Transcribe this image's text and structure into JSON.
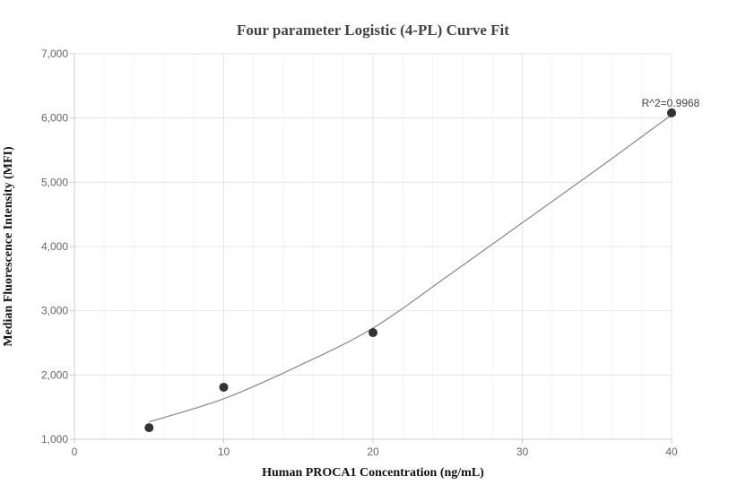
{
  "chart_data": {
    "type": "scatter",
    "title": "Four parameter Logistic (4-PL) Curve Fit",
    "xlabel": "Human PROCA1 Concentration (ng/mL)",
    "ylabel": "Median Fluorescence Intensity (MFI)",
    "xlim": [
      0,
      40
    ],
    "ylim": [
      1000,
      7000
    ],
    "x_ticks": [
      0,
      10,
      20,
      30,
      40
    ],
    "y_ticks": [
      1000,
      2000,
      3000,
      4000,
      5000,
      6000,
      7000
    ],
    "x_tick_labels": [
      "0",
      "10",
      "20",
      "30",
      "40"
    ],
    "y_tick_labels": [
      "1,000",
      "2,000",
      "3,000",
      "4,000",
      "5,000",
      "6,000",
      "7,000"
    ],
    "grid": true,
    "points": {
      "x": [
        5,
        10,
        20,
        40
      ],
      "y": [
        1180,
        1810,
        2660,
        6080
      ]
    },
    "fit_curve": {
      "x": [
        5,
        10,
        15,
        20,
        25,
        30,
        35,
        40
      ],
      "y": [
        1270,
        1630,
        2140,
        2730,
        3540,
        4370,
        5200,
        6050
      ]
    },
    "annotation": "R^2=0.9968",
    "colors": {
      "points": "#333333",
      "curve": "#888888",
      "grid": "#e6e6e6",
      "minor_grid": "#f3f3f3",
      "axis": "#cccccc"
    }
  }
}
